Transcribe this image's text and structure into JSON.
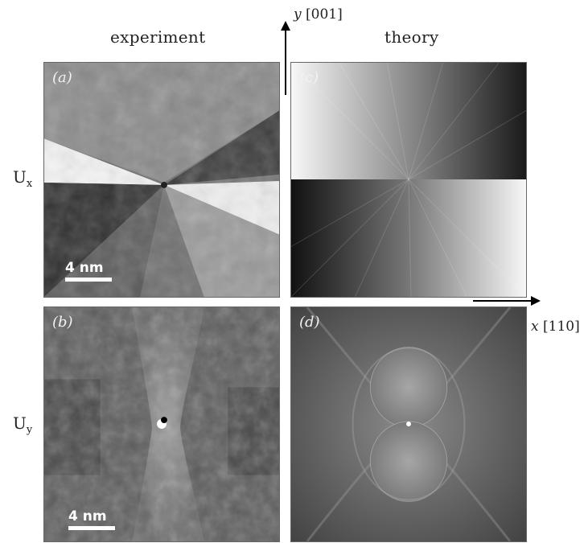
{
  "columns": {
    "experiment": "experiment",
    "theory": "theory"
  },
  "rows": {
    "ux": {
      "base": "U",
      "sub": "x"
    },
    "uy": {
      "base": "U",
      "sub": "y"
    }
  },
  "axes": {
    "y": {
      "var": "y",
      "dir": "[001]"
    },
    "x": {
      "var": "x",
      "dir": "[110]"
    }
  },
  "panels": {
    "a": {
      "label": "(a)",
      "scale": "4 nm"
    },
    "b": {
      "label": "(b)",
      "scale": "4 nm"
    },
    "c": {
      "label": "(c)"
    },
    "d": {
      "label": "(d)"
    }
  }
}
